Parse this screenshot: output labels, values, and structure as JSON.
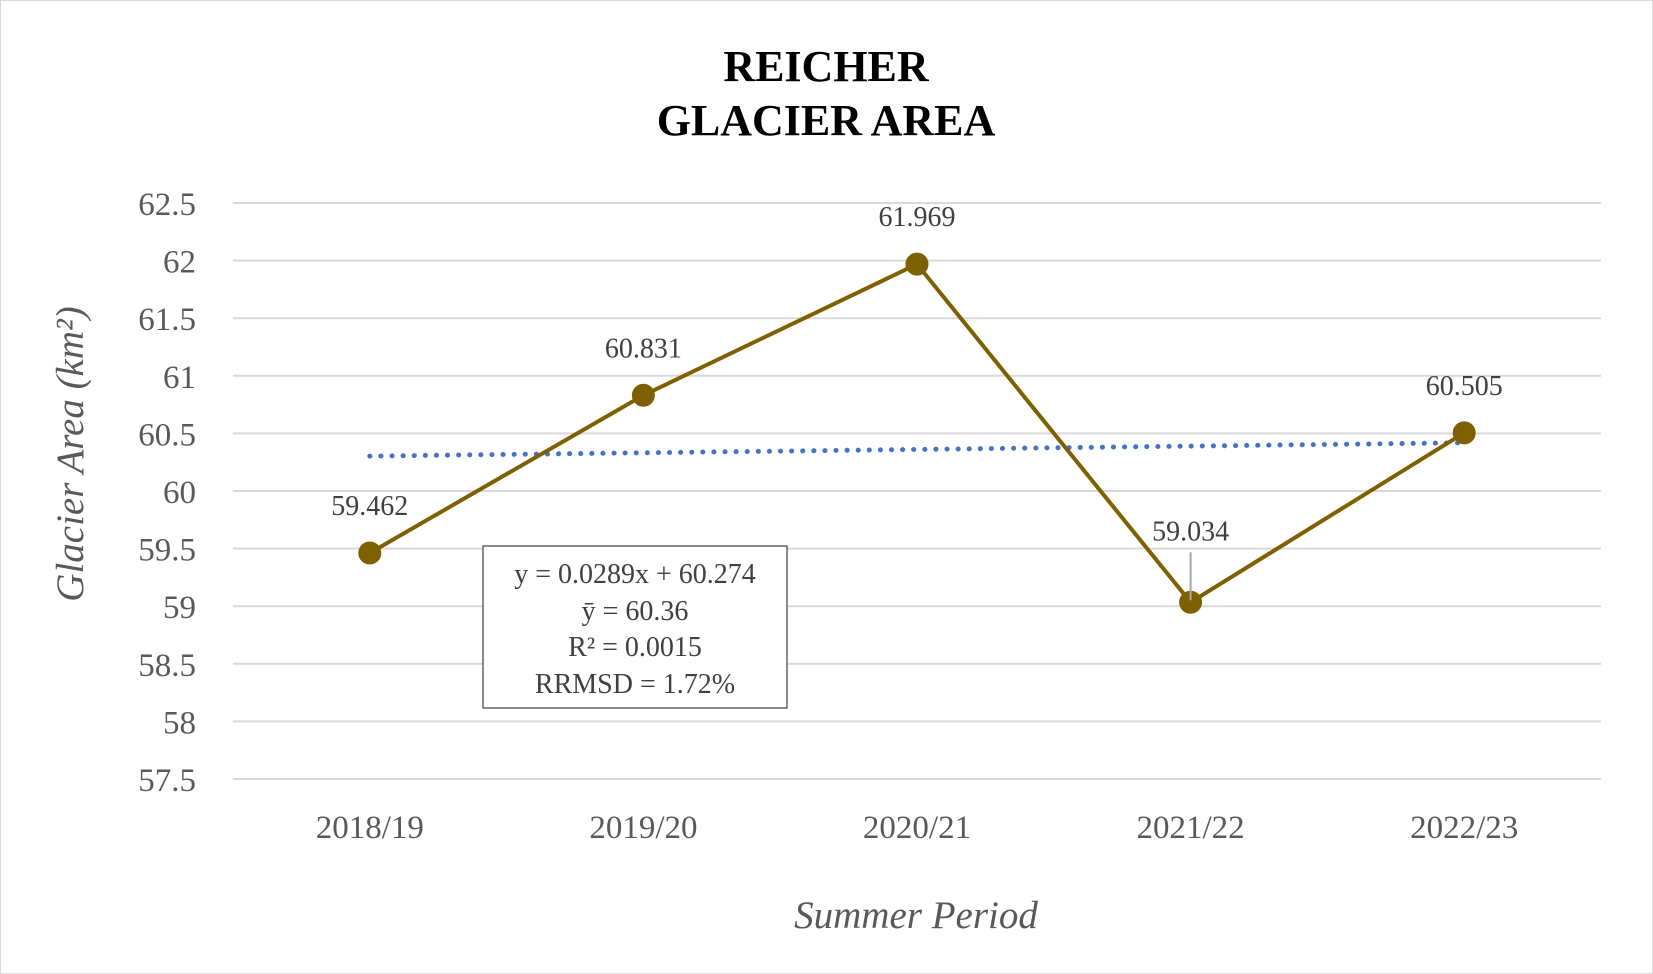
{
  "chart_data": {
    "type": "line",
    "title": [
      "REICHER",
      "GLACIER AREA"
    ],
    "xlabel": "Summer Period",
    "ylabel": "Glacier Area (km²)",
    "categories": [
      "2018/19",
      "2019/20",
      "2020/21",
      "2021/22",
      "2022/23"
    ],
    "series": [
      {
        "values": [
          59.462,
          60.831,
          61.969,
          59.034,
          60.505
        ],
        "data_labels": [
          "59.462",
          "60.831",
          "61.969",
          "59.034",
          "60.505"
        ],
        "color": "#7f6000"
      }
    ],
    "trendline": {
      "type": "linear",
      "slope": 0.0289,
      "intercept": 60.274,
      "style": "dotted",
      "color": "#4472c4"
    },
    "annotation": [
      "y = 0.0289x + 60.274",
      "ȳ  = 60.36",
      "R² = 0.0015",
      "RRMSD = 1.72%"
    ],
    "ylim": [
      57.5,
      62.5
    ],
    "yticks": [
      "62.5",
      "62",
      "61.5",
      "61",
      "60.5",
      "60",
      "59.5",
      "59",
      "58.5",
      "58",
      "57.5"
    ],
    "grid": true,
    "grid_color": "#d9d9d9",
    "legend": "none"
  }
}
